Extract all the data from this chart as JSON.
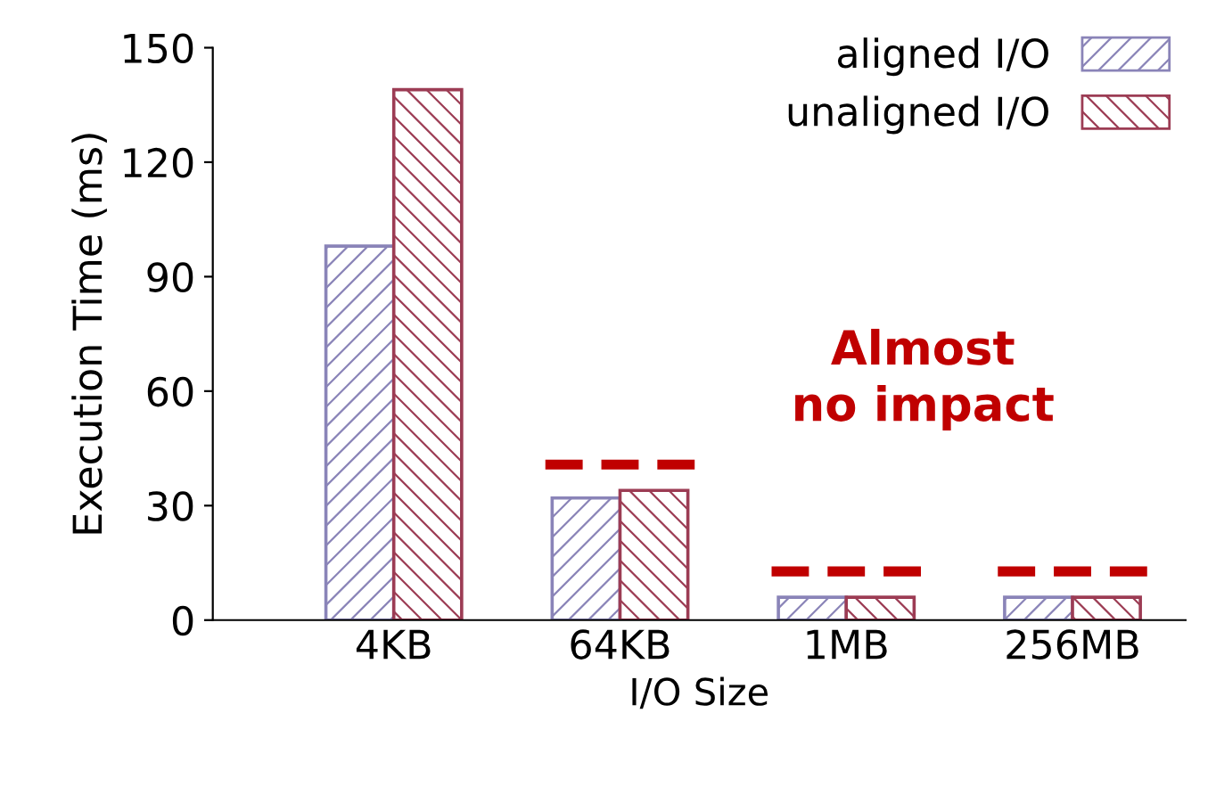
{
  "chart_data": {
    "type": "bar",
    "xlabel": "I/O Size",
    "ylabel": "Execution Time (ms)",
    "categories": [
      "4KB",
      "64KB",
      "1MB",
      "256MB"
    ],
    "series": [
      {
        "name": "aligned I/O",
        "color": "#8a84b8",
        "values": [
          98,
          32,
          6,
          6
        ]
      },
      {
        "name": "unaligned I/O",
        "color": "#9c3c54",
        "values": [
          139,
          34,
          6,
          6
        ]
      }
    ],
    "ylim": [
      0,
      150
    ],
    "yticks": [
      0,
      30,
      60,
      90,
      120,
      150
    ],
    "grid": false,
    "legend": "top right",
    "annotations": [
      "Almost\nno impact"
    ]
  }
}
